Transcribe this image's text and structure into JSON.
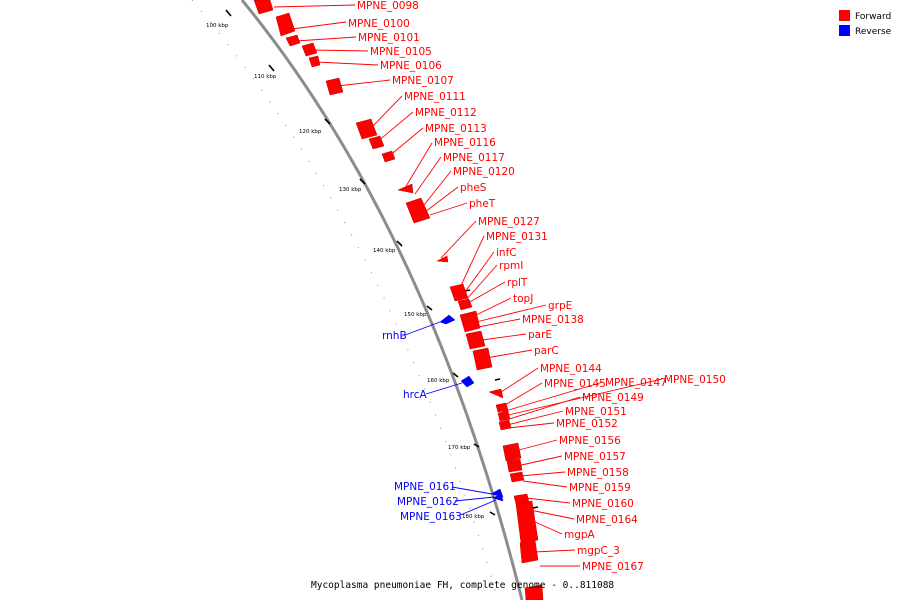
{
  "legend": {
    "forward": {
      "label": "Forward",
      "color": "#ff0000"
    },
    "reverse": {
      "label": "Reverse",
      "color": "#0000ff"
    }
  },
  "caption": "Mycoplasma pneumoniae FH, complete genome - 0..811088",
  "scale_labels": [
    "100 kbp",
    "110 kbp",
    "120 kbp",
    "130 kbp",
    "140 kbp",
    "150 kbp",
    "160 kbp",
    "170 kbp",
    "180 kbp"
  ],
  "forward_genes": [
    "MPNE_0098",
    "MPNE_0100",
    "MPNE_0101",
    "MPNE_0105",
    "MPNE_0106",
    "MPNE_0107",
    "MPNE_0111",
    "MPNE_0112",
    "MPNE_0113",
    "MPNE_0116",
    "MPNE_0117",
    "MPNE_0120",
    "pheS",
    "pheT",
    "MPNE_0127",
    "MPNE_0131",
    "infC",
    "rpmI",
    "rplT",
    "topJ",
    "grpE",
    "MPNE_0138",
    "parE",
    "parC",
    "MPNE_0144",
    "MPNE_0145",
    "MPNE_0147",
    "MPNE_0150",
    "MPNE_0149",
    "MPNE_0151",
    "MPNE_0152",
    "MPNE_0156",
    "MPNE_0157",
    "MPNE_0158",
    "MPNE_0159",
    "MPNE_0160",
    "MPNE_0164",
    "mgpA",
    "mgpC_3",
    "MPNE_0167"
  ],
  "reverse_genes": [
    "rnhB",
    "hrcA",
    "MPNE_0161",
    "MPNE_0162",
    "MPNE_0163"
  ]
}
